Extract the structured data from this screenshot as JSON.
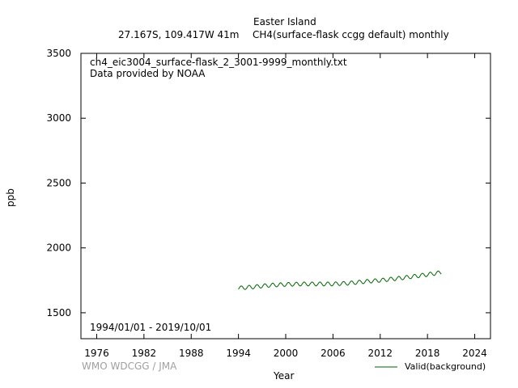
{
  "header": {
    "station": "Easter Island",
    "location": "27.167S, 109.417W 41m",
    "dataset": "CH4(surface-flask ccgg default) monthly"
  },
  "annotations": {
    "filename": "ch4_eic3004_surface-flask_2_3001-9999_monthly.txt",
    "provider": "Data provided by NOAA",
    "period": "1994/01/01 - 2019/10/01",
    "credit": "WMO WDCGG / JMA"
  },
  "chart_data": {
    "type": "line",
    "title": "",
    "xlabel": "Year",
    "ylabel": "ppb",
    "xlim": [
      1974,
      2026
    ],
    "ylim": [
      1300,
      3500
    ],
    "x_ticks": [
      1976,
      1982,
      1988,
      1994,
      2000,
      2006,
      2012,
      2018,
      2024
    ],
    "y_ticks": [
      1500,
      2000,
      2500,
      3000,
      3500
    ],
    "grid": false,
    "legend_position": "bottom-right",
    "series": [
      {
        "name": "Valid(background)",
        "color": "#006400",
        "start_year": 1994,
        "start_month": 1,
        "trend_anchors": [
          [
            1994.0,
            1690
          ],
          [
            1996.0,
            1700
          ],
          [
            1998.0,
            1712
          ],
          [
            2000.0,
            1718
          ],
          [
            2002.0,
            1722
          ],
          [
            2004.0,
            1722
          ],
          [
            2006.0,
            1722
          ],
          [
            2008.0,
            1728
          ],
          [
            2010.0,
            1740
          ],
          [
            2012.0,
            1750
          ],
          [
            2014.0,
            1763
          ],
          [
            2016.0,
            1778
          ],
          [
            2018.0,
            1795
          ],
          [
            2019.75,
            1810
          ]
        ],
        "seasonal_amplitude": 15
      }
    ]
  }
}
